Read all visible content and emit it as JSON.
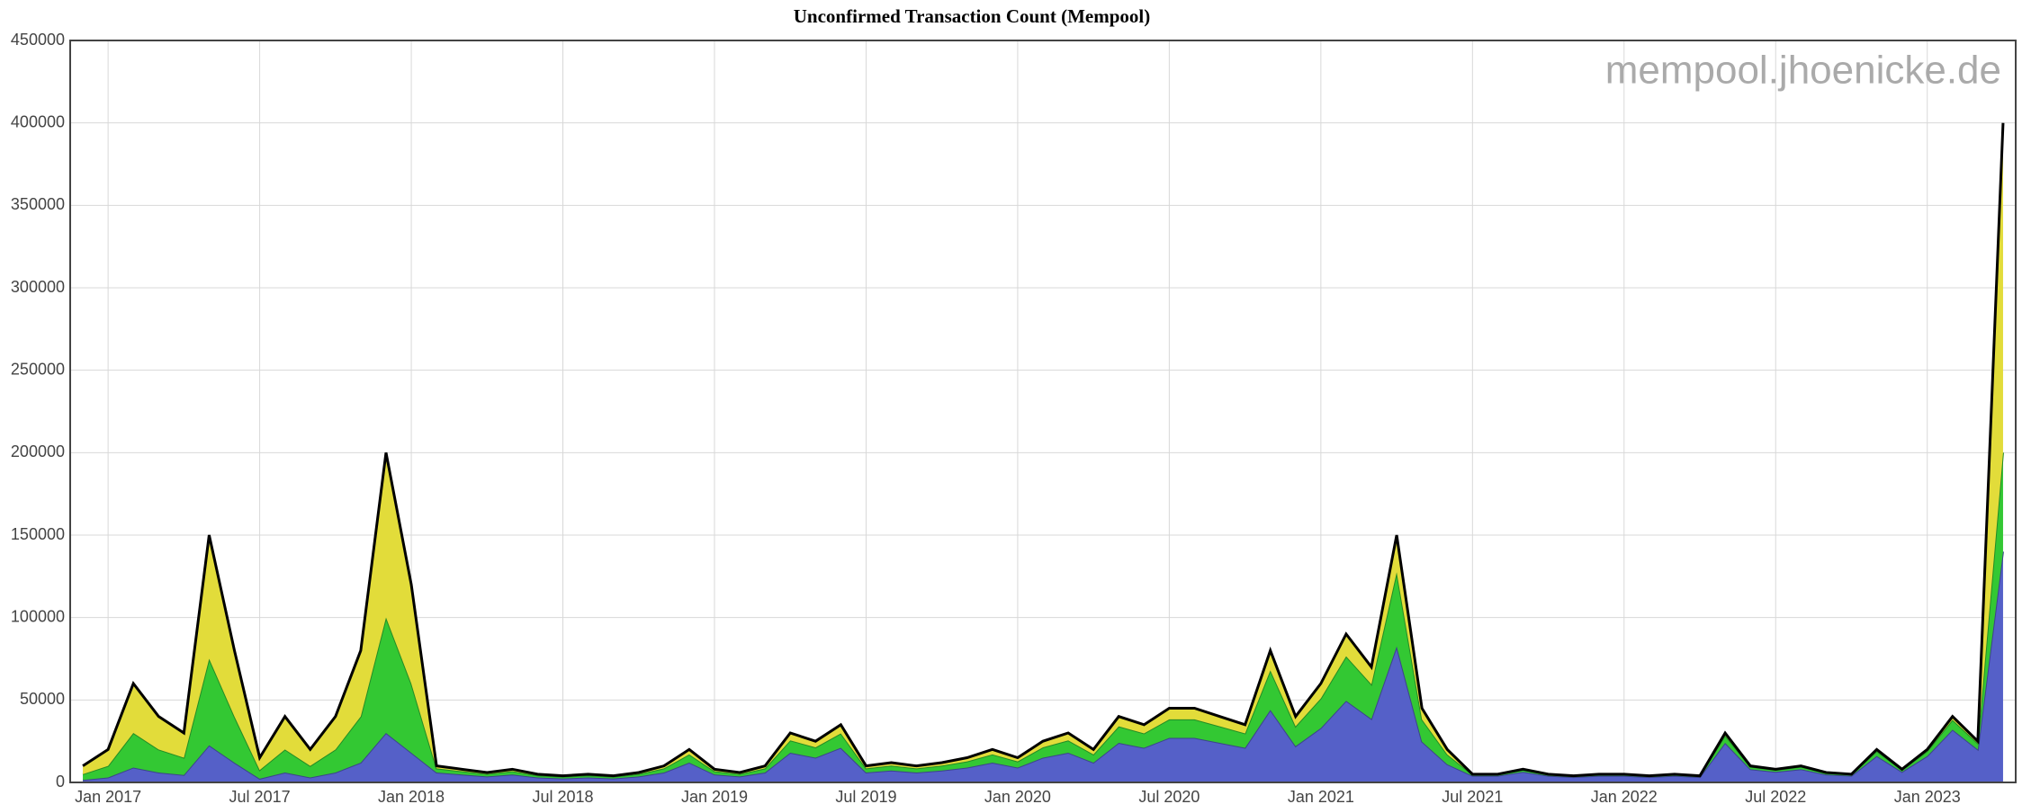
{
  "chart_data": {
    "type": "stacked-area",
    "title": "Unconfirmed Transaction Count (Mempool)",
    "annotation": "mempool.jhoenicke.de",
    "x": [
      "2016-12",
      "2017-01",
      "2017-02",
      "2017-03",
      "2017-04",
      "2017-05",
      "2017-06",
      "2017-07",
      "2017-08",
      "2017-09",
      "2017-10",
      "2017-11",
      "2017-12",
      "2018-01",
      "2018-02",
      "2018-03",
      "2018-04",
      "2018-05",
      "2018-06",
      "2018-07",
      "2018-08",
      "2018-09",
      "2018-10",
      "2018-11",
      "2018-12",
      "2019-01",
      "2019-02",
      "2019-03",
      "2019-04",
      "2019-05",
      "2019-06",
      "2019-07",
      "2019-08",
      "2019-09",
      "2019-10",
      "2019-11",
      "2019-12",
      "2020-01",
      "2020-02",
      "2020-03",
      "2020-04",
      "2020-05",
      "2020-06",
      "2020-07",
      "2020-08",
      "2020-09",
      "2020-10",
      "2020-11",
      "2020-12",
      "2021-01",
      "2021-02",
      "2021-03",
      "2021-04",
      "2021-05",
      "2021-06",
      "2021-07",
      "2021-08",
      "2021-09",
      "2021-10",
      "2021-11",
      "2021-12",
      "2022-01",
      "2022-02",
      "2022-03",
      "2022-04",
      "2022-05",
      "2022-06",
      "2022-07",
      "2022-08",
      "2022-09",
      "2022-10",
      "2022-11",
      "2022-12",
      "2023-01",
      "2023-02",
      "2023-03",
      "2023-04"
    ],
    "series": [
      {
        "color": "#5560c8",
        "values": [
          1500,
          3000,
          9000,
          6000,
          4500,
          22500,
          12000,
          2250,
          6000,
          3000,
          6000,
          12000,
          30000,
          18000,
          6000,
          4800,
          3600,
          4800,
          3000,
          2400,
          3000,
          2400,
          3600,
          6000,
          12000,
          4800,
          3600,
          6000,
          18000,
          15000,
          21000,
          6000,
          7200,
          6000,
          7200,
          9000,
          12000,
          9000,
          15000,
          18000,
          12000,
          24000,
          21000,
          27000,
          27000,
          24000,
          21000,
          44000,
          22000,
          33000,
          49500,
          38500,
          82500,
          24750,
          11000,
          4000,
          4000,
          6400,
          4000,
          3200,
          4000,
          4000,
          3200,
          4000,
          3200,
          24000,
          8000,
          6400,
          8000,
          4800,
          4000,
          16000,
          6400,
          16000,
          32000,
          20000,
          140000
        ]
      },
      {
        "color": "#33c833",
        "values": [
          3500,
          7000,
          21000,
          14000,
          10500,
          52500,
          28000,
          5250,
          14000,
          7000,
          14000,
          28000,
          70000,
          42000,
          2500,
          2000,
          1500,
          2000,
          1250,
          1000,
          1250,
          1000,
          1500,
          2500,
          5000,
          2000,
          1500,
          2500,
          7500,
          6250,
          8750,
          2500,
          3000,
          2500,
          3000,
          3750,
          5000,
          3750,
          6250,
          7500,
          5000,
          10000,
          8750,
          11250,
          11250,
          10000,
          8750,
          24000,
          12000,
          18000,
          27000,
          21000,
          45000,
          13500,
          6000,
          750,
          750,
          1200,
          750,
          600,
          750,
          750,
          600,
          750,
          600,
          4500,
          1500,
          1200,
          1500,
          900,
          750,
          3000,
          1200,
          3000,
          6000,
          3750,
          60000
        ]
      },
      {
        "color": "#e2dc3a",
        "values": [
          5000,
          10000,
          30000,
          20000,
          15000,
          75000,
          40000,
          7500,
          20000,
          10000,
          20000,
          40000,
          100000,
          60000,
          1500,
          1200,
          900,
          1200,
          750,
          600,
          750,
          600,
          900,
          1500,
          3000,
          1200,
          900,
          1500,
          4500,
          3750,
          5250,
          1500,
          1800,
          1500,
          1800,
          2250,
          3000,
          2250,
          3750,
          4500,
          3000,
          6000,
          5250,
          6750,
          6750,
          6000,
          5250,
          12000,
          6000,
          9000,
          13500,
          10500,
          22500,
          6750,
          3000,
          250,
          250,
          400,
          250,
          200,
          250,
          250,
          200,
          250,
          200,
          1500,
          500,
          400,
          500,
          300,
          250,
          1000,
          400,
          1000,
          2000,
          1250,
          200000
        ]
      }
    ],
    "xlim": [
      "2016-12",
      "2023-04"
    ],
    "xticks": [
      {
        "value": "2017-01",
        "label": "Jan 2017"
      },
      {
        "value": "2017-07",
        "label": "Jul 2017"
      },
      {
        "value": "2018-01",
        "label": "Jan 2018"
      },
      {
        "value": "2018-07",
        "label": "Jul 2018"
      },
      {
        "value": "2019-01",
        "label": "Jan 2019"
      },
      {
        "value": "2019-07",
        "label": "Jul 2019"
      },
      {
        "value": "2020-01",
        "label": "Jan 2020"
      },
      {
        "value": "2020-07",
        "label": "Jul 2020"
      },
      {
        "value": "2021-01",
        "label": "Jan 2021"
      },
      {
        "value": "2021-07",
        "label": "Jul 2021"
      },
      {
        "value": "2022-01",
        "label": "Jan 2022"
      },
      {
        "value": "2022-07",
        "label": "Jul 2022"
      },
      {
        "value": "2023-01",
        "label": "Jan 2023"
      }
    ],
    "ylim": [
      0,
      450000
    ],
    "yticks": [
      0,
      50000,
      100000,
      150000,
      200000,
      250000,
      300000,
      350000,
      400000,
      450000
    ],
    "grid": true,
    "top_line_color": "#000000"
  }
}
